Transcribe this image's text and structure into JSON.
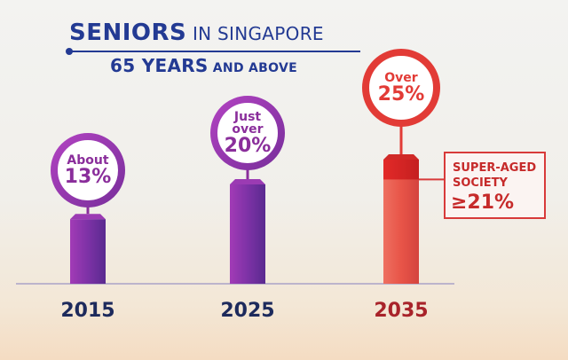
{
  "title": {
    "line1_bold": "SENIORS",
    "line1_rest": " IN SINGAPORE",
    "line2_bold": "65 YEARS",
    "line2_rest": " AND ABOVE"
  },
  "chart_data": {
    "type": "bar",
    "categories": [
      "2015",
      "2025",
      "2035"
    ],
    "values": [
      13,
      20,
      25
    ],
    "ylim": [
      0,
      30
    ],
    "grid": false,
    "bar_colors": [
      "#7b35a8",
      "#7b35a8",
      "#e85a4f"
    ],
    "labels": [
      {
        "prefix": "About",
        "value": "13%"
      },
      {
        "prefix": "Just over",
        "value": "20%"
      },
      {
        "prefix": "Over",
        "value": "25%"
      }
    ],
    "annotation": {
      "line1": "SUPER-AGED",
      "line2": "SOCIETY",
      "line3": "≥21%",
      "threshold": 21
    }
  },
  "colors": {
    "title": "#233a93",
    "purple": "#8a2e9b",
    "red": "#e23b36",
    "year": "#1d2a5c",
    "year_highlight": "#a8232a"
  }
}
